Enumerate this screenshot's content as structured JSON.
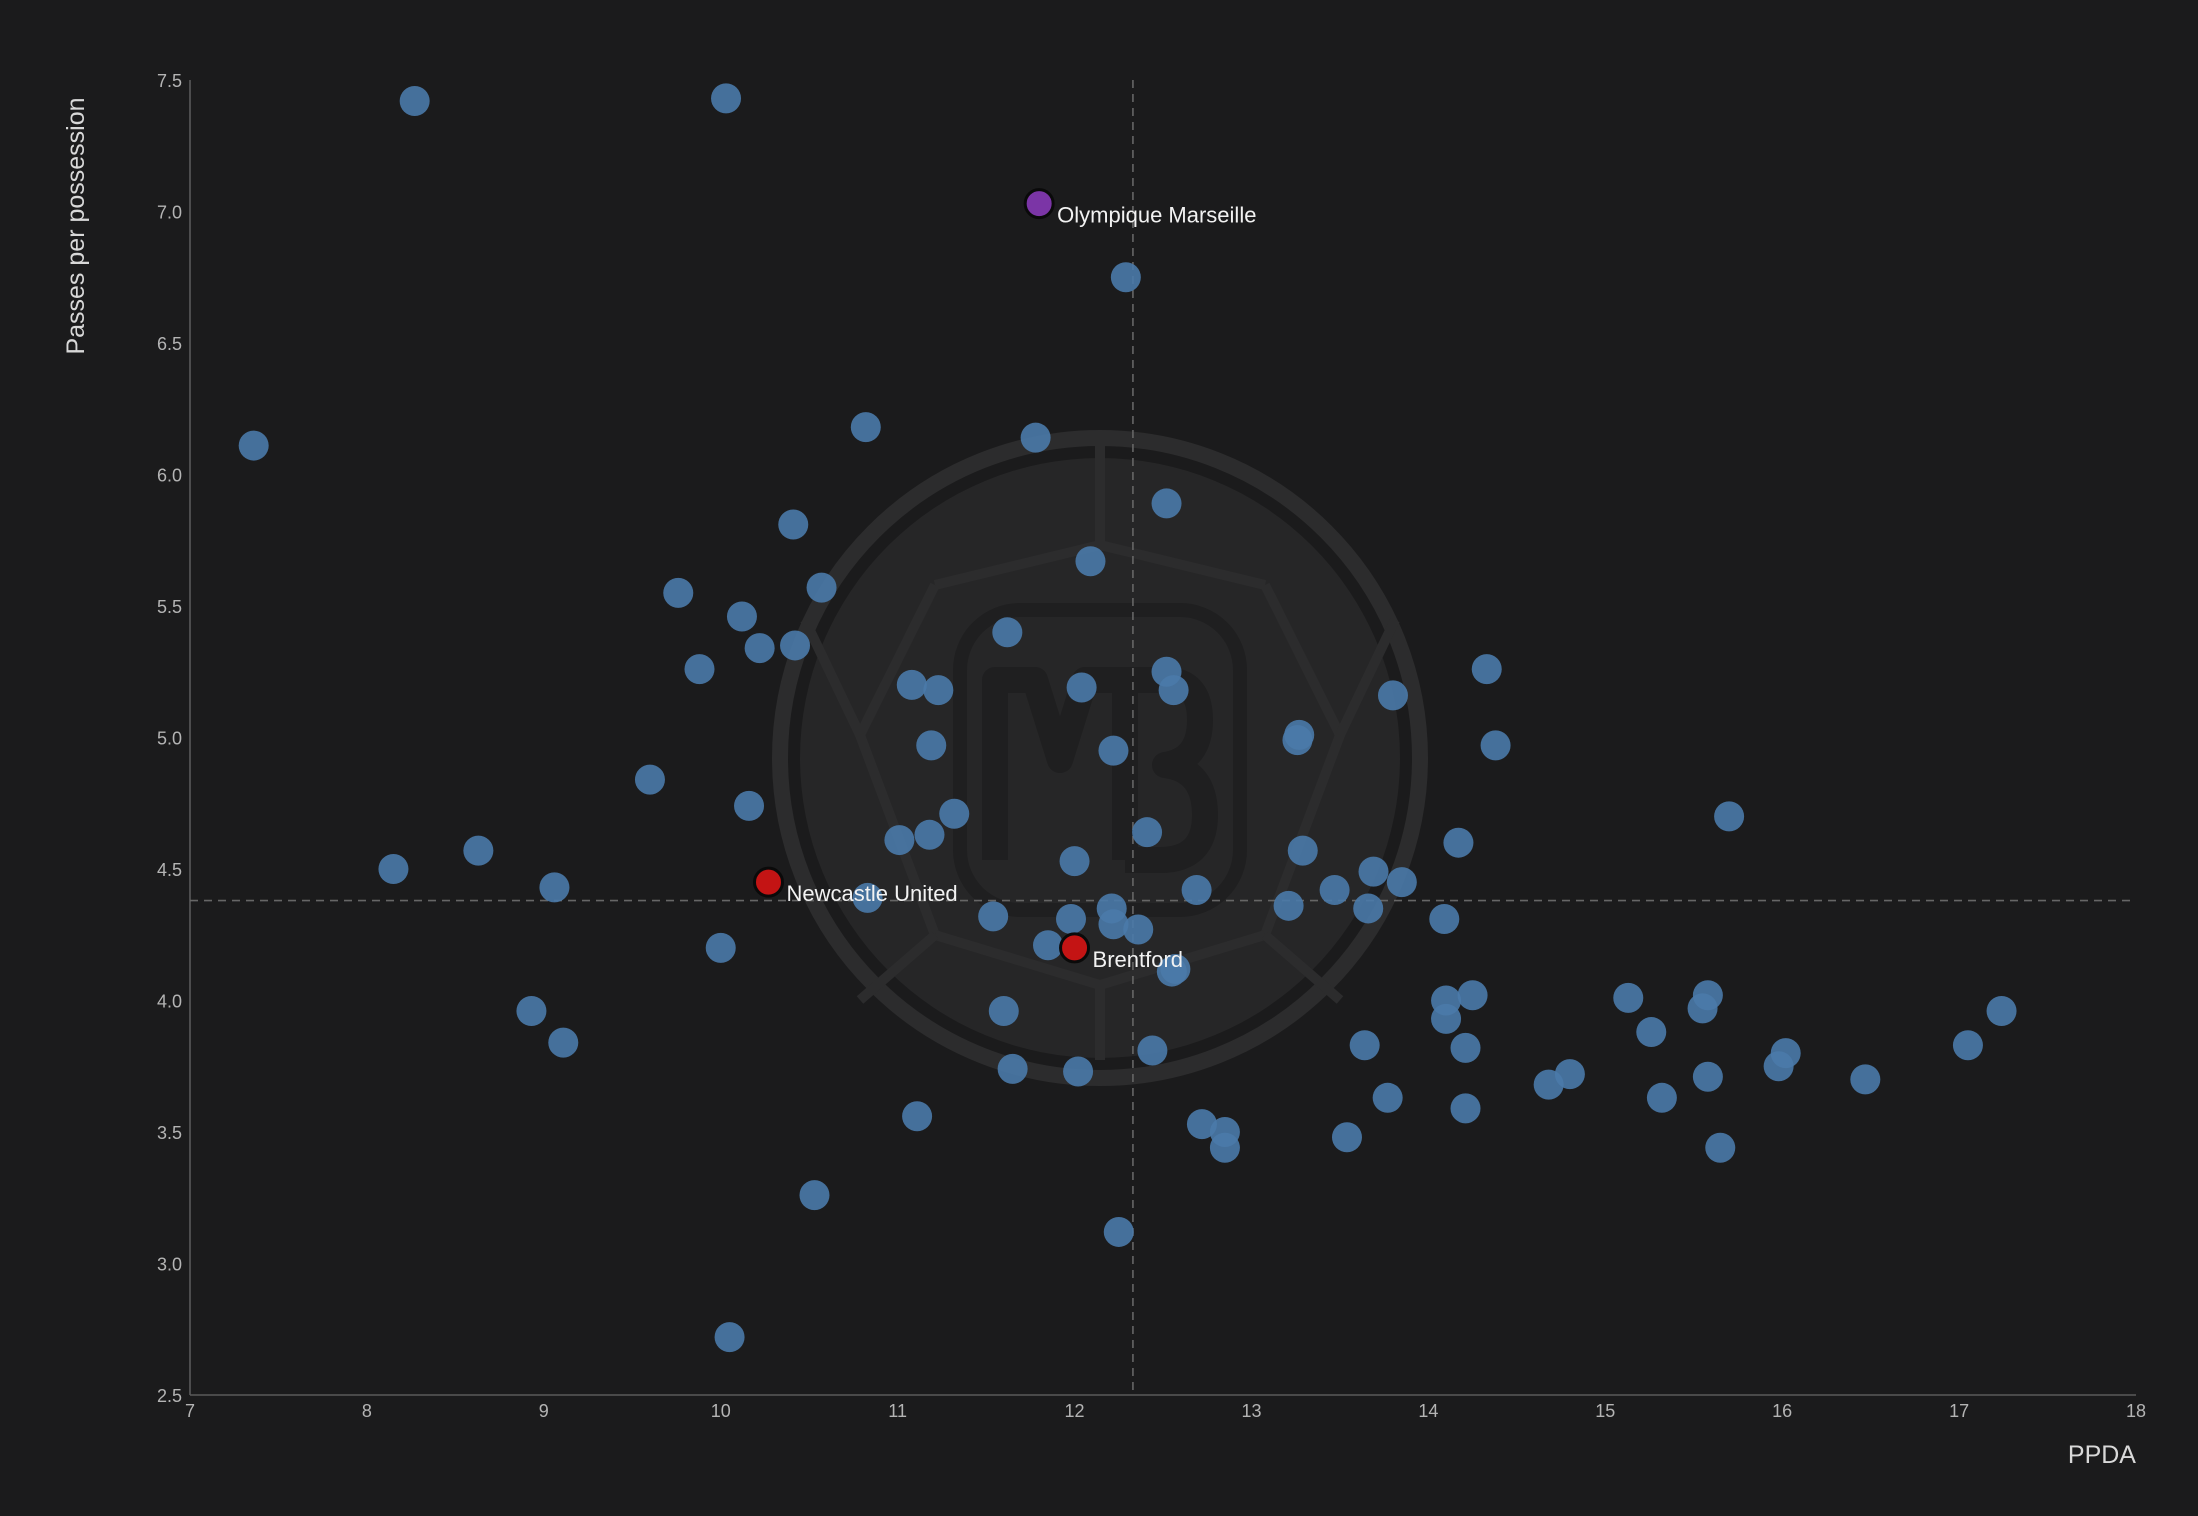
{
  "chart_data": {
    "type": "scatter",
    "title": "",
    "xlabel": "PPDA",
    "ylabel": "Passes per possession",
    "xlim": [
      7,
      18
    ],
    "ylim": [
      2.5,
      7.5
    ],
    "xticks": [
      "7",
      "8",
      "9",
      "10",
      "11",
      "12",
      "13",
      "14",
      "15",
      "16",
      "17",
      "18"
    ],
    "yticks": [
      "2.5",
      "3.0",
      "3.5",
      "4.0",
      "4.5",
      "5.0",
      "5.5",
      "6.0",
      "6.5",
      "7.0",
      "7.5"
    ],
    "grid": false,
    "reference_lines": {
      "x": 12.33,
      "y": 4.38
    },
    "watermark": "MB",
    "colors": {
      "background": "#1b1b1c",
      "points": "#4a7aaa",
      "highlight_red": "#c41414",
      "highlight_purple": "#7b35a6",
      "axis": "#5a5a5a",
      "text": "#d8d8d8"
    },
    "highlighted": [
      {
        "label": "Olympique Marseille",
        "x": 11.8,
        "y": 7.03,
        "color": "#7b35a6"
      },
      {
        "label": "Newcastle United",
        "x": 10.27,
        "y": 4.45,
        "color": "#c41414"
      },
      {
        "label": "Brentford",
        "x": 12.0,
        "y": 4.2,
        "color": "#c41414"
      }
    ],
    "points": [
      [
        8.27,
        7.42
      ],
      [
        10.03,
        7.43
      ],
      [
        12.29,
        6.75
      ],
      [
        7.36,
        6.11
      ],
      [
        10.82,
        6.18
      ],
      [
        11.78,
        6.14
      ],
      [
        12.52,
        5.89
      ],
      [
        10.41,
        5.81
      ],
      [
        12.09,
        5.67
      ],
      [
        9.76,
        5.55
      ],
      [
        10.57,
        5.57
      ],
      [
        10.12,
        5.46
      ],
      [
        10.22,
        5.34
      ],
      [
        10.42,
        5.35
      ],
      [
        9.88,
        5.26
      ],
      [
        11.62,
        5.4
      ],
      [
        11.08,
        5.2
      ],
      [
        11.23,
        5.18
      ],
      [
        12.04,
        5.19
      ],
      [
        12.52,
        5.25
      ],
      [
        12.56,
        5.18
      ],
      [
        11.19,
        4.97
      ],
      [
        12.22,
        4.95
      ],
      [
        13.26,
        4.99
      ],
      [
        13.27,
        5.01
      ],
      [
        13.8,
        5.16
      ],
      [
        14.33,
        5.26
      ],
      [
        14.38,
        4.97
      ],
      [
        9.6,
        4.84
      ],
      [
        10.16,
        4.74
      ],
      [
        11.32,
        4.71
      ],
      [
        11.01,
        4.61
      ],
      [
        11.18,
        4.63
      ],
      [
        12.41,
        4.64
      ],
      [
        12.0,
        4.53
      ],
      [
        8.15,
        4.5
      ],
      [
        8.63,
        4.57
      ],
      [
        9.06,
        4.43
      ],
      [
        13.29,
        4.57
      ],
      [
        13.69,
        4.49
      ],
      [
        13.85,
        4.45
      ],
      [
        14.17,
        4.6
      ],
      [
        15.7,
        4.7
      ],
      [
        12.69,
        4.42
      ],
      [
        13.47,
        4.42
      ],
      [
        13.21,
        4.36
      ],
      [
        13.66,
        4.35
      ],
      [
        14.09,
        4.31
      ],
      [
        10.83,
        4.39
      ],
      [
        11.54,
        4.32
      ],
      [
        11.98,
        4.31
      ],
      [
        12.21,
        4.35
      ],
      [
        12.22,
        4.29
      ],
      [
        12.36,
        4.27
      ],
      [
        11.85,
        4.21
      ],
      [
        10.0,
        4.2
      ],
      [
        12.55,
        4.11
      ],
      [
        12.57,
        4.12
      ],
      [
        8.93,
        3.96
      ],
      [
        9.11,
        3.84
      ],
      [
        11.6,
        3.96
      ],
      [
        11.65,
        3.74
      ],
      [
        12.02,
        3.73
      ],
      [
        12.44,
        3.81
      ],
      [
        13.64,
        3.83
      ],
      [
        14.1,
        4.0
      ],
      [
        14.1,
        3.93
      ],
      [
        14.25,
        4.02
      ],
      [
        14.21,
        3.82
      ],
      [
        15.13,
        4.01
      ],
      [
        15.26,
        3.88
      ],
      [
        15.55,
        3.97
      ],
      [
        15.58,
        4.02
      ],
      [
        16.02,
        3.8
      ],
      [
        15.98,
        3.75
      ],
      [
        17.05,
        3.83
      ],
      [
        17.24,
        3.96
      ],
      [
        14.68,
        3.68
      ],
      [
        14.8,
        3.72
      ],
      [
        15.58,
        3.71
      ],
      [
        16.47,
        3.7
      ],
      [
        13.77,
        3.63
      ],
      [
        14.21,
        3.59
      ],
      [
        15.32,
        3.63
      ],
      [
        15.65,
        3.44
      ],
      [
        11.11,
        3.56
      ],
      [
        12.72,
        3.53
      ],
      [
        12.85,
        3.5
      ],
      [
        12.85,
        3.44
      ],
      [
        13.54,
        3.48
      ],
      [
        10.53,
        3.26
      ],
      [
        12.25,
        3.12
      ],
      [
        10.05,
        2.72
      ]
    ]
  }
}
